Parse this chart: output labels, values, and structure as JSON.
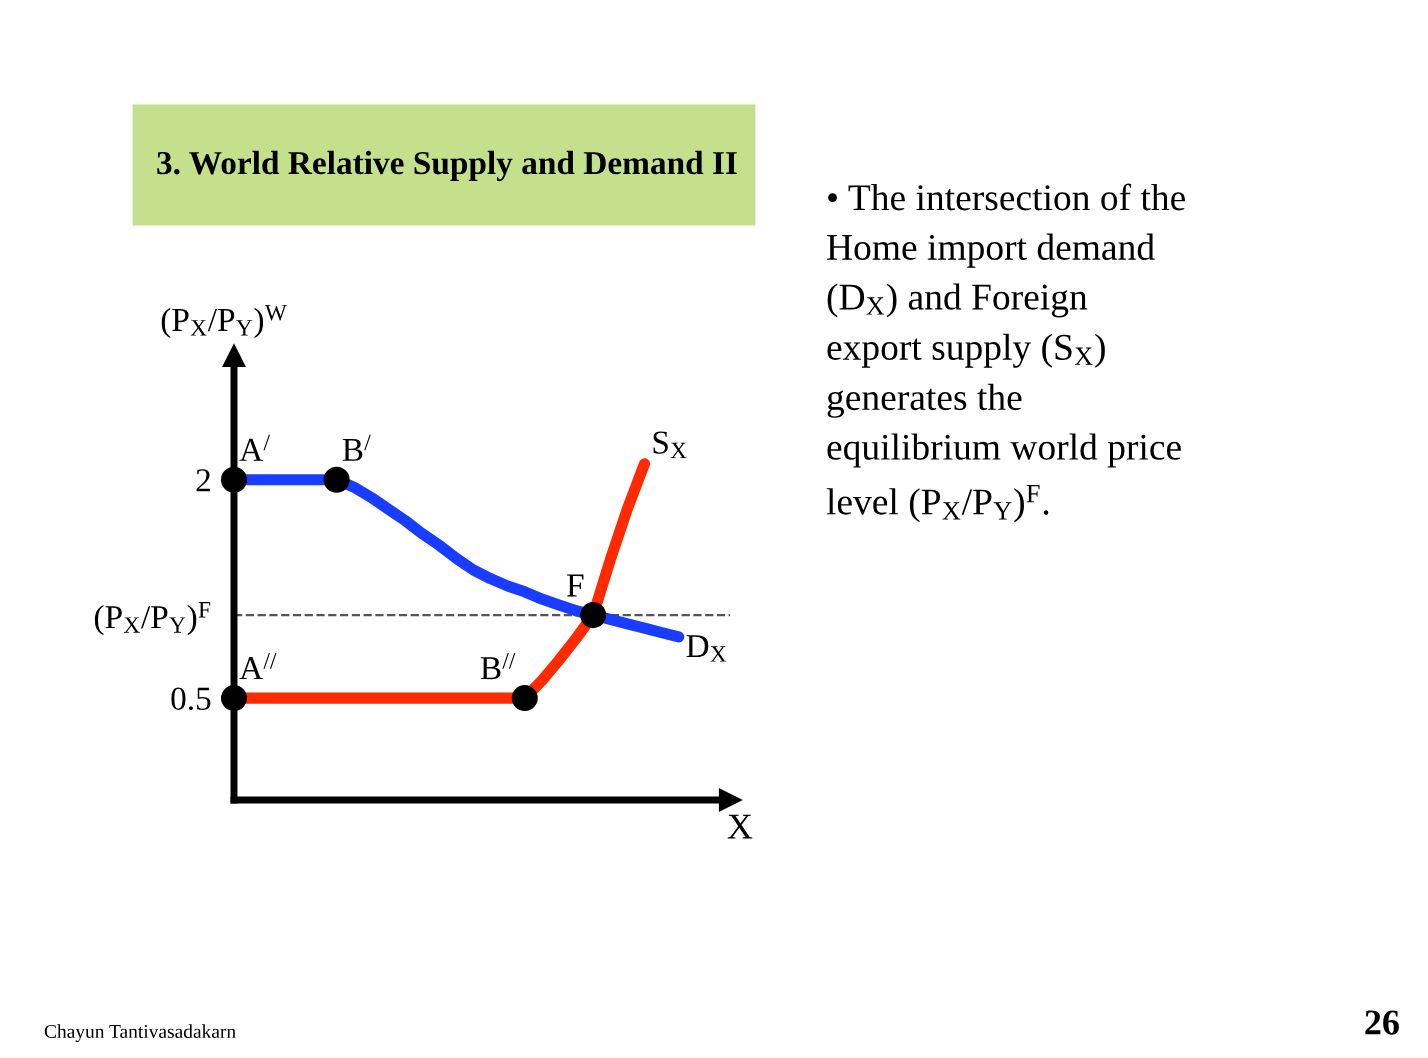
{
  "chart_data": {
    "type": "line",
    "title": "3. World Relative Supply and Demand II",
    "ylabel": "(P$_{X}$/P$_{Y}$)$^{W}$",
    "xlabel": "X",
    "categories": [
      null,
      null,
      null,
      null,
      null,
      null,
      null,
      null,
      null,
      null,
      null,
      null,
      null,
      null,
      null,
      null,
      null,
      null,
      null,
      null,
      null,
      null,
      null,
      null,
      null,
      null,
      null,
      null,
      null,
      null
    ],
    "series": [
      {
        "name": "D$_{X}$",
        "color": "#1a3cff",
        "values": [
          2,
          2,
          2,
          2,
          2,
          2,
          2,
          1.95,
          1.88,
          1.8,
          1.72,
          1.63,
          1.55,
          1.46,
          1.38,
          1.32,
          1.27,
          1.23,
          1.18,
          1.14,
          1.1,
          1.07,
          1.04,
          1.01,
          0.98,
          0.95,
          0.92,
          null,
          null,
          null
        ]
      },
      {
        "name": "S$_{X}$",
        "color": "#ff2a00",
        "values": [
          0.5,
          0.5,
          0.5,
          0.5,
          0.5,
          0.5,
          0.5,
          0.5,
          0.5,
          0.5,
          0.5,
          0.5,
          0.5,
          0.5,
          0.5,
          0.5,
          0.5,
          0.5,
          0.62,
          0.76,
          0.91,
          1.07,
          1.45,
          1.8,
          2.11,
          null,
          null,
          null,
          null,
          null
        ]
      },
      {
        "type": "scatter",
        "marker": "circle",
        "color": "#000000",
        "values": [
          2,
          null,
          null,
          null,
          null,
          null,
          2,
          null,
          null,
          null,
          null,
          null,
          null,
          null,
          null,
          null,
          null,
          null,
          null,
          null,
          null,
          1.07,
          null,
          null,
          null,
          null,
          null,
          null,
          null,
          null
        ],
        "value_labels": [
          "A$^{/}$",
          null,
          null,
          null,
          null,
          null,
          "B$^{/}$",
          null,
          null,
          null,
          null,
          null,
          null,
          null,
          null,
          null,
          null,
          null,
          null,
          null,
          null,
          "F",
          null,
          null,
          null,
          null,
          null,
          null,
          null,
          null
        ]
      },
      {
        "type": "scatter",
        "marker": "circle",
        "color": "#000000",
        "values": [
          0.5,
          null,
          null,
          null,
          null,
          null,
          null,
          null,
          null,
          null,
          null,
          null,
          null,
          null,
          null,
          null,
          null,
          0.5,
          null,
          null,
          null,
          null,
          null,
          null,
          null,
          null,
          null,
          null,
          null,
          null
        ],
        "value_labels": [
          "A$^{//}$",
          null,
          null,
          null,
          null,
          null,
          null,
          null,
          null,
          null,
          null,
          null,
          null,
          null,
          null,
          null,
          null,
          "B$^{//}$",
          null,
          null,
          null,
          null,
          null,
          null,
          null,
          null,
          null,
          null,
          null,
          null
        ]
      }
    ],
    "ref_lines": [
      {
        "axis": "y",
        "value": 1.07,
        "color": "#555555",
        "line_style": "dashed"
      }
    ],
    "ylim": [
      -0.2,
      2.85
    ],
    "yticks": [
      0.5,
      {
        "value": 1.07,
        "label": "(P$_{X}$/P$_{Y}$)$^{F}$"
      },
      2
    ],
    "grid": false,
    "legend": false,
    "marker": "none",
    "line_style": "solid",
    "annotations": [
      "• The intersection of the\nHome import demand\n(D$_{X}$) and Foreign\nexport supply (S$_{X}$)\ngenerates the\nequilibrium world price\nlevel (P$_{X}$/P$_{Y}$)$^{F}$.",
      "Chayun Tantivasadakarn",
      "26"
    ]
  }
}
